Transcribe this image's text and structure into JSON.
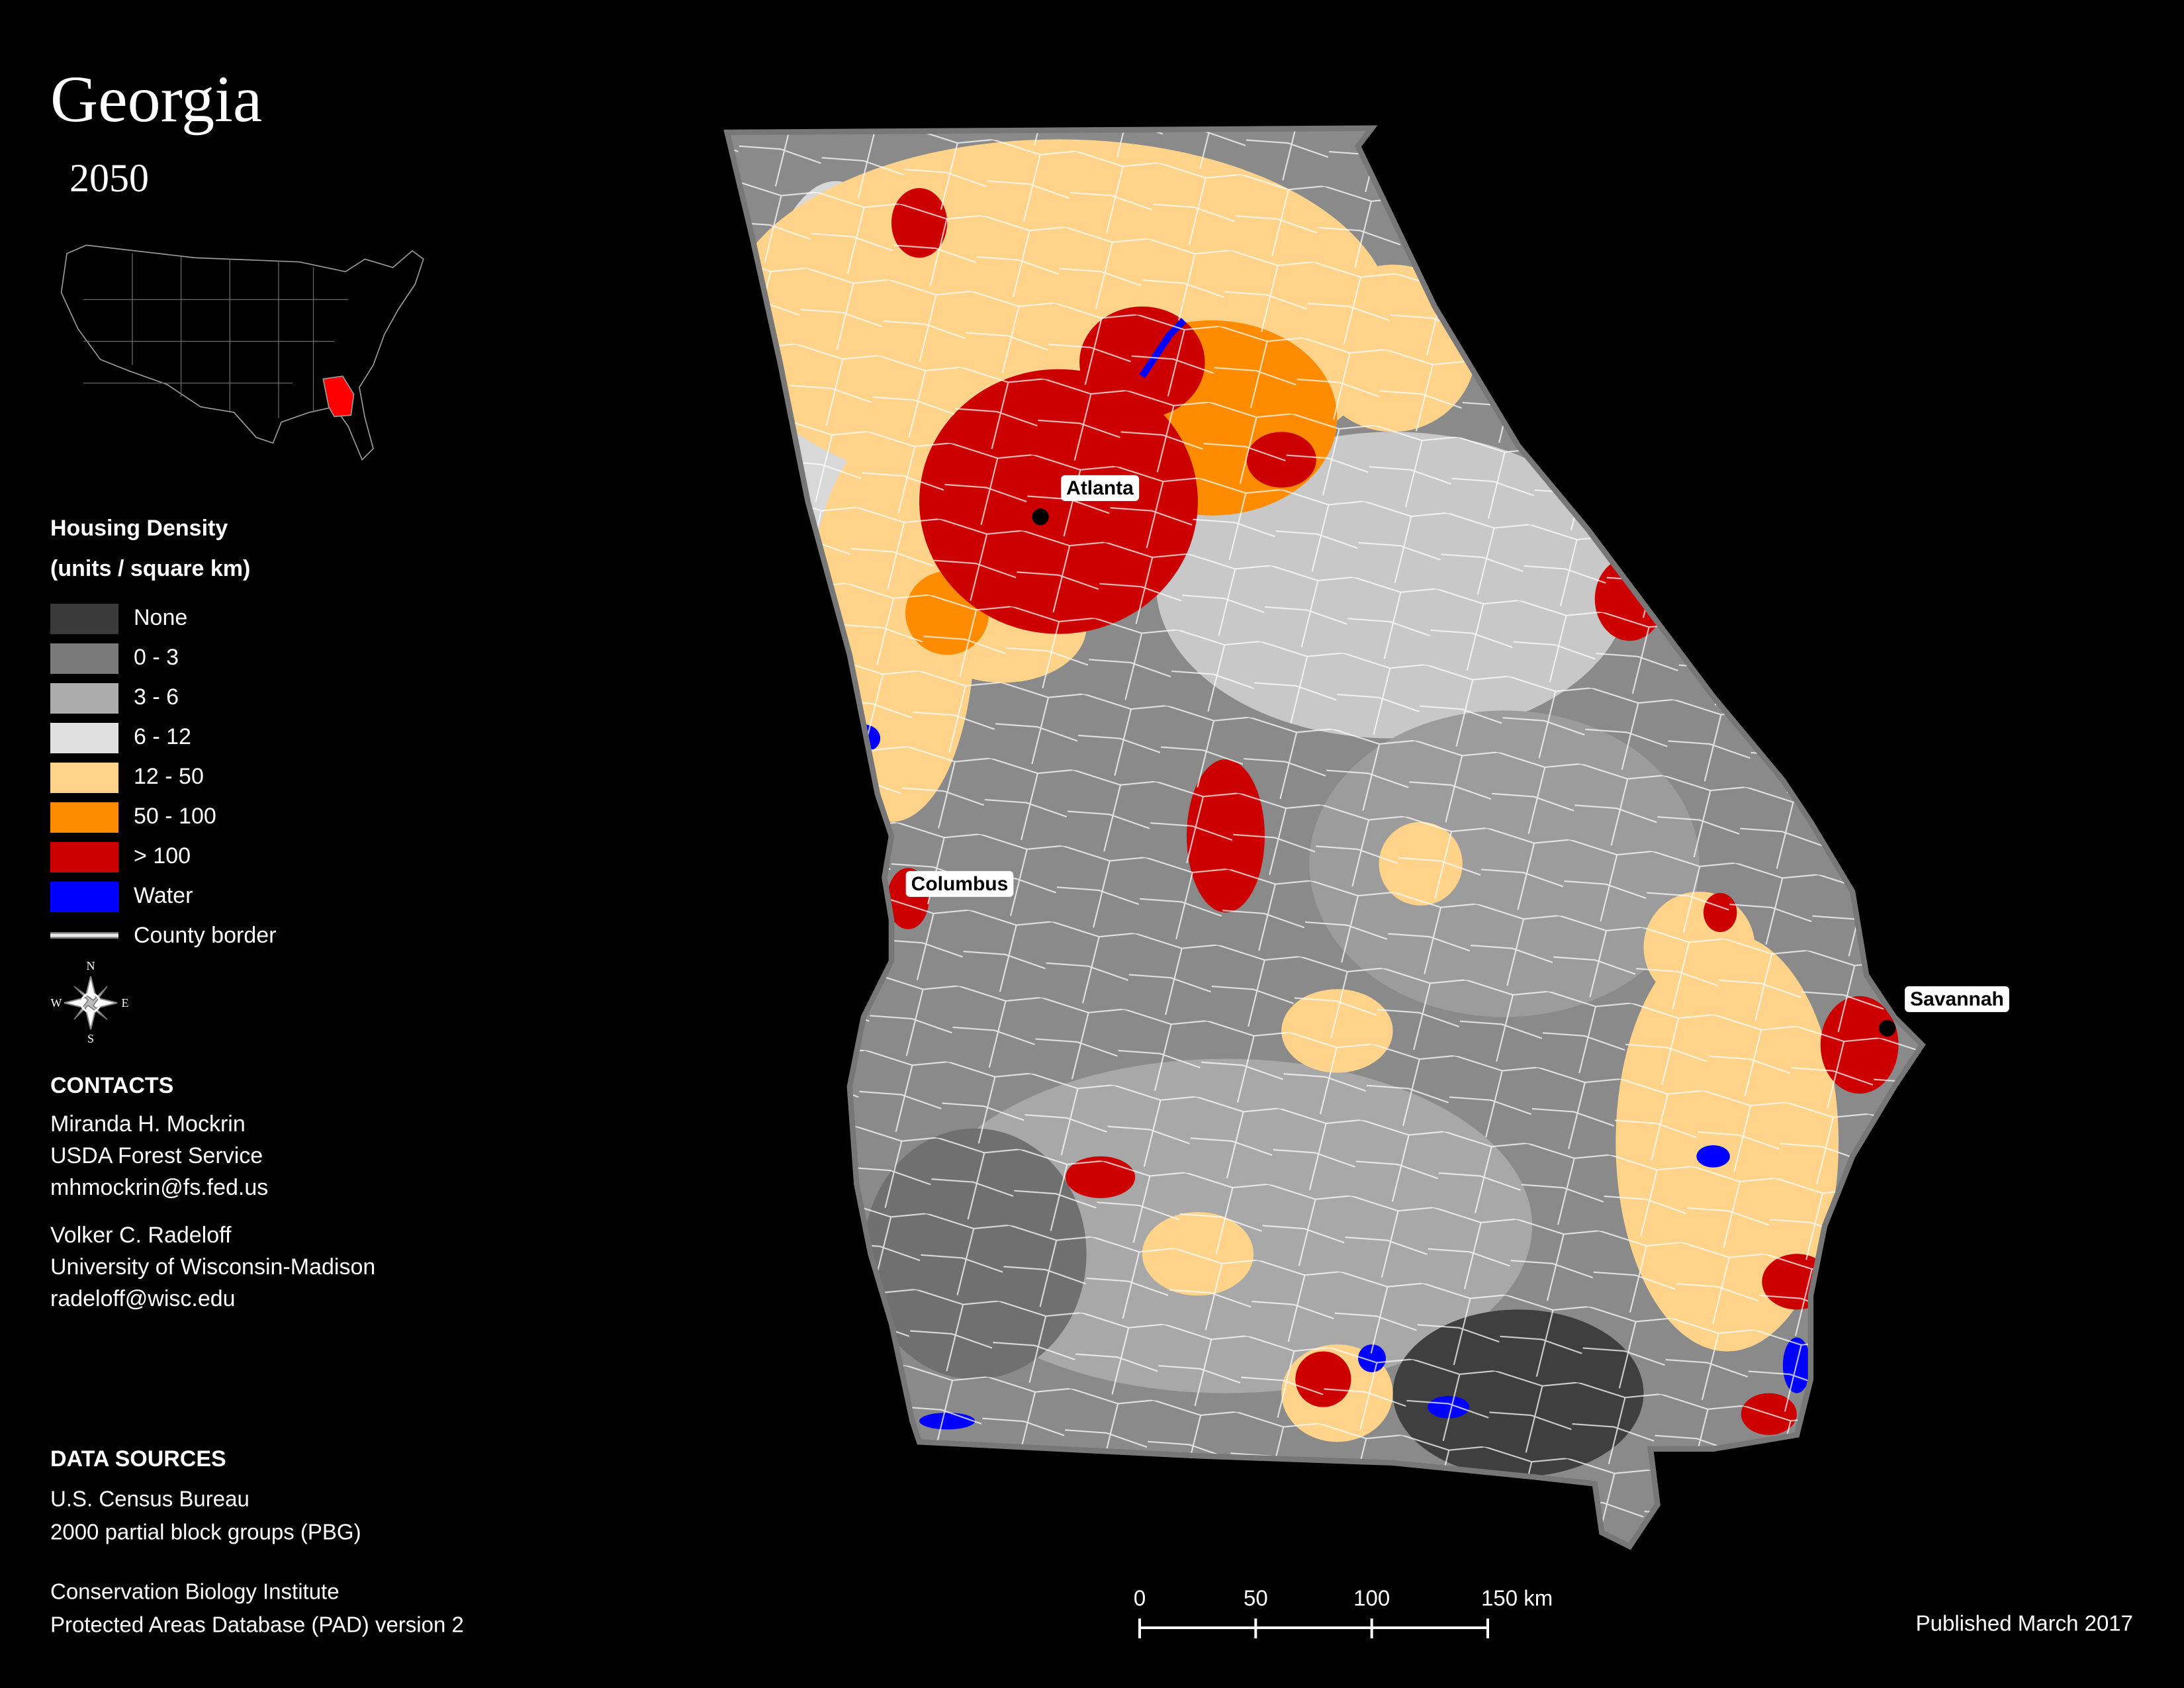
{
  "title": "Georgia",
  "subtitle": "2050",
  "legend": {
    "title": "Housing Density",
    "subtitle": "(units / square km)",
    "items": [
      {
        "label": "None",
        "color": "#3a3a3a",
        "swatch": "box"
      },
      {
        "label": "0 - 3",
        "color": "#7a7a7a",
        "swatch": "box"
      },
      {
        "label": "3 - 6",
        "color": "#acacac",
        "swatch": "box"
      },
      {
        "label": "6 - 12",
        "color": "#e0e0e0",
        "swatch": "box"
      },
      {
        "label": "12 - 50",
        "color": "#ffd38a",
        "swatch": "box"
      },
      {
        "label": "50 - 100",
        "color": "#ff8c00",
        "swatch": "box"
      },
      {
        "label": "> 100",
        "color": "#cc0000",
        "swatch": "box"
      },
      {
        "label": "Water",
        "color": "#0000ff",
        "swatch": "box"
      },
      {
        "label": "County border",
        "color": "#e8e8e8",
        "swatch": "line"
      }
    ]
  },
  "cities": [
    {
      "label": "Atlanta"
    },
    {
      "label": "Columbus"
    },
    {
      "label": "Savannah"
    }
  ],
  "compass": {
    "n": "N",
    "e": "E",
    "s": "S",
    "w": "W"
  },
  "contacts": {
    "heading": "CONTACTS",
    "people": [
      [
        "Miranda H. Mockrin",
        "USDA Forest Service",
        "mhmockrin@fs.fed.us"
      ],
      [
        "Volker C. Radeloff",
        "University of Wisconsin-Madison",
        "radeloff@wisc.edu"
      ]
    ]
  },
  "data_sources": {
    "heading": "DATA SOURCES",
    "entries": [
      [
        "U.S. Census Bureau",
        "2000 partial block groups (PBG)"
      ],
      [
        "Conservation Biology Institute",
        "Protected Areas Database (PAD) version 2"
      ]
    ]
  },
  "scale_bar": {
    "labels": [
      "0",
      "50",
      "100",
      "150 km"
    ]
  },
  "published": "Published March 2017"
}
